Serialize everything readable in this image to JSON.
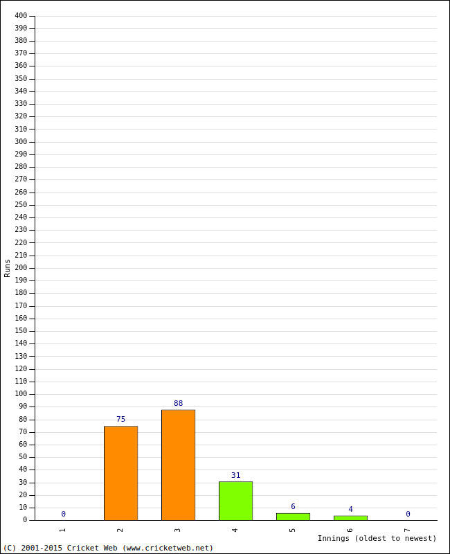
{
  "chart_data": {
    "type": "bar",
    "x_label": "Innings (oldest to newest)",
    "y_label": "Runs",
    "annotations": [
      "(C) 2001-2015 Cricket Web (www.cricketweb.net)"
    ],
    "categories": [
      "1",
      "2",
      "3",
      "4",
      "5",
      "6",
      "7"
    ],
    "values": [
      0,
      75,
      88,
      31,
      6,
      4,
      0
    ],
    "colors": [
      "#ff8c00",
      "#ff8c00",
      "#ff8c00",
      "#80ff00",
      "#80ff00",
      "#80ff00",
      "#80ff00"
    ],
    "ylim": [
      0,
      400
    ],
    "yticks": [
      0,
      10,
      20,
      30,
      40,
      50,
      60,
      70,
      80,
      90,
      100,
      110,
      120,
      130,
      140,
      150,
      160,
      170,
      180,
      190,
      200,
      210,
      220,
      230,
      240,
      250,
      260,
      270,
      280,
      290,
      300,
      310,
      320,
      330,
      340,
      350,
      360,
      370,
      380,
      390,
      400
    ],
    "grid": true,
    "data_labels": true
  }
}
